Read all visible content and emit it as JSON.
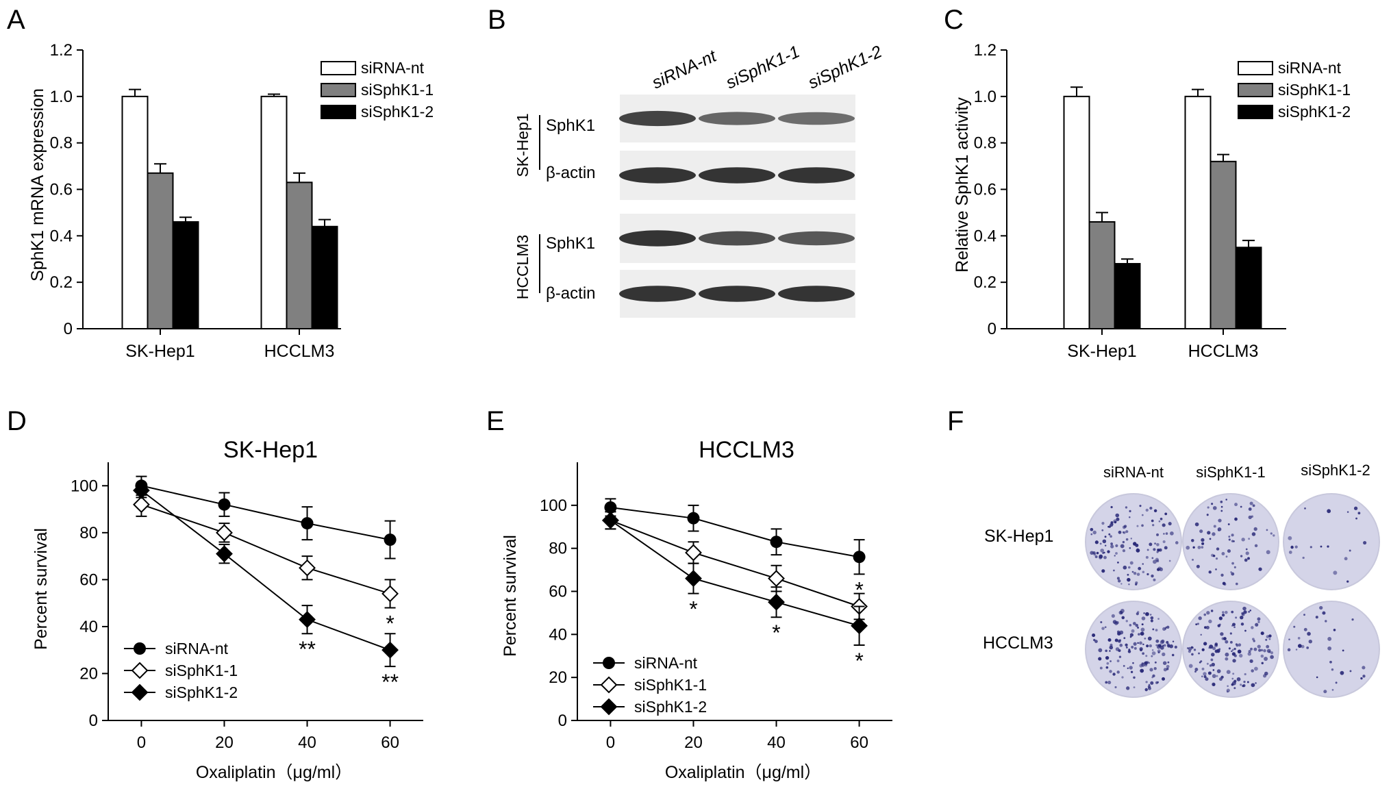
{
  "figure": {
    "panel_letters": [
      "A",
      "B",
      "C",
      "D",
      "E",
      "F"
    ],
    "colors": {
      "siRNA-nt": "#ffffff",
      "siSphK1-1": "#808080",
      "siSphK1-2": "#000000",
      "axis": "#000000",
      "blot_bg": "#eeeeee",
      "band": "#222222",
      "dish_bg": "#d4d4e8",
      "colony": "#2a2a78"
    }
  },
  "chart_data": [
    {
      "panel": "A",
      "type": "bar",
      "title": "",
      "xlabel": "",
      "ylabel": "SphK1 mRNA expression",
      "categories": [
        "SK-Hep1",
        "HCCLM3"
      ],
      "series": [
        {
          "name": "siRNA-nt",
          "values": [
            1.0,
            1.0
          ],
          "errors": [
            0.03,
            0.01
          ]
        },
        {
          "name": "siSphK1-1",
          "values": [
            0.67,
            0.63
          ],
          "errors": [
            0.04,
            0.04
          ]
        },
        {
          "name": "siSphK1-2",
          "values": [
            0.46,
            0.44
          ],
          "errors": [
            0.02,
            0.03
          ]
        }
      ],
      "ylim": [
        0,
        1.2
      ],
      "yticks": [
        "0",
        "0.2",
        "0.4",
        "0.6",
        "0.8",
        "1.0",
        "1.2"
      ],
      "legend": "top-right",
      "grid": false
    },
    {
      "panel": "C",
      "type": "bar",
      "title": "",
      "xlabel": "",
      "ylabel": "Relative SphK1 activity",
      "categories": [
        "SK-Hep1",
        "HCCLM3"
      ],
      "series": [
        {
          "name": "siRNA-nt",
          "values": [
            1.0,
            1.0
          ],
          "errors": [
            0.04,
            0.03
          ]
        },
        {
          "name": "siSphK1-1",
          "values": [
            0.46,
            0.72
          ],
          "errors": [
            0.04,
            0.03
          ]
        },
        {
          "name": "siSphK1-2",
          "values": [
            0.28,
            0.35
          ],
          "errors": [
            0.02,
            0.03
          ]
        }
      ],
      "ylim": [
        0,
        1.2
      ],
      "yticks": [
        "0",
        "0.2",
        "0.4",
        "0.6",
        "0.8",
        "1.0",
        "1.2"
      ],
      "legend": "top-right",
      "grid": false
    },
    {
      "panel": "D",
      "type": "line",
      "title": "SK-Hep1",
      "xlabel": "Oxaliplatin（μg/ml）",
      "ylabel": "Percent survival",
      "x": [
        0,
        20,
        40,
        60
      ],
      "series": [
        {
          "name": "siRNA-nt",
          "values": [
            100,
            92,
            84,
            77
          ],
          "errors": [
            4,
            5,
            7,
            8
          ],
          "marker": "circle",
          "significance": [
            "",
            "",
            "",
            ""
          ]
        },
        {
          "name": "siSphK1-1",
          "values": [
            92,
            80,
            65,
            54
          ],
          "errors": [
            5,
            4,
            5,
            6
          ],
          "marker": "diamond-open",
          "significance": [
            "",
            "",
            "",
            "*"
          ]
        },
        {
          "name": "siSphK1-2",
          "values": [
            98,
            71,
            43,
            30
          ],
          "errors": [
            3,
            4,
            6,
            7
          ],
          "marker": "diamond",
          "significance": [
            "",
            "",
            "**",
            "**"
          ]
        }
      ],
      "xlim": [
        -8,
        68
      ],
      "ylim": [
        0,
        110
      ],
      "xticks": [
        "0",
        "20",
        "40",
        "60"
      ],
      "yticks": [
        "0",
        "20",
        "40",
        "60",
        "80",
        "100"
      ],
      "legend": "bottom-left",
      "grid": false
    },
    {
      "panel": "E",
      "type": "line",
      "title": "HCCLM3",
      "xlabel": "Oxaliplatin（μg/ml）",
      "ylabel": "Percent survival",
      "x": [
        0,
        20,
        40,
        60
      ],
      "series": [
        {
          "name": "siRNA-nt",
          "values": [
            99,
            94,
            83,
            76
          ],
          "errors": [
            4,
            6,
            6,
            8
          ],
          "marker": "circle",
          "significance": [
            "",
            "",
            "",
            "*"
          ]
        },
        {
          "name": "siSphK1-1",
          "values": [
            93,
            78,
            66,
            53
          ],
          "errors": [
            4,
            5,
            6,
            6
          ],
          "marker": "diamond-open",
          "significance": [
            "",
            "",
            "",
            ""
          ]
        },
        {
          "name": "siSphK1-2",
          "values": [
            93,
            66,
            55,
            44
          ],
          "errors": [
            4,
            7,
            7,
            9
          ],
          "marker": "diamond",
          "significance": [
            "",
            "*",
            "*",
            "*"
          ]
        }
      ],
      "xlim": [
        -8,
        68
      ],
      "ylim": [
        0,
        120
      ],
      "xticks": [
        "0",
        "20",
        "40",
        "60"
      ],
      "yticks": [
        "0",
        "20",
        "40",
        "60",
        "80",
        "100"
      ],
      "legend": "bottom-left",
      "grid": false
    }
  ],
  "western_blot": {
    "lanes": [
      "siRNA-nt",
      "siSphK1-1",
      "siSphK1-2"
    ],
    "cell_lines": [
      "SK-Hep1",
      "HCCLM3"
    ],
    "rows": [
      {
        "cell_line": "SK-Hep1",
        "label": "SphK1",
        "intensities": [
          0.85,
          0.6,
          0.55
        ]
      },
      {
        "cell_line": "SK-Hep1",
        "label": "β-actin",
        "intensities": [
          0.95,
          0.95,
          0.95
        ]
      },
      {
        "cell_line": "HCCLM3",
        "label": "SphK1",
        "intensities": [
          0.95,
          0.75,
          0.7
        ]
      },
      {
        "cell_line": "HCCLM3",
        "label": "β-actin",
        "intensities": [
          0.95,
          0.95,
          0.95
        ]
      }
    ]
  },
  "colony": {
    "columns": [
      "siRNA-nt",
      "siSphK1-1",
      "siSphK1-2"
    ],
    "rows": [
      "SK-Hep1",
      "HCCLM3"
    ],
    "colony_density": [
      [
        0.75,
        0.45,
        0.12
      ],
      [
        0.95,
        0.9,
        0.2
      ]
    ]
  }
}
